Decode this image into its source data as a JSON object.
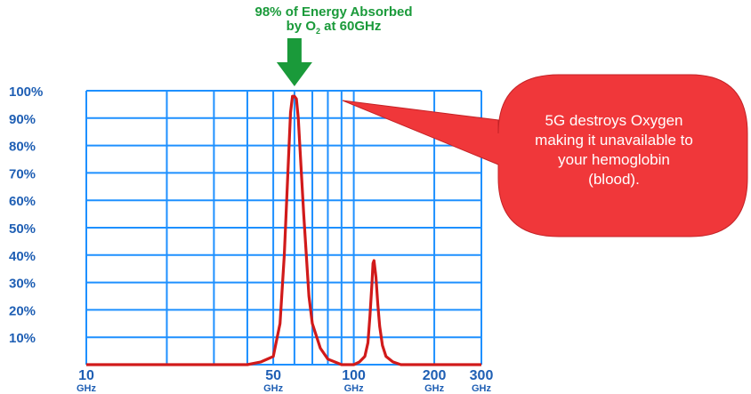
{
  "title": {
    "line1": "98% of Energy Absorbed",
    "line2_pre": "by O",
    "line2_sub": "2",
    "line2_post": " at 60GHz"
  },
  "callout": {
    "lines": [
      "5G destroys Oxygen",
      "making it unavailable to",
      "your hemoglobin",
      "(blood)."
    ]
  },
  "colors": {
    "grid": "#1e90ff",
    "curve": "#d11a1a",
    "title": "#1a9a3a",
    "arrow": "#1a9a3a",
    "ticks": "#1f5fb4",
    "callout_fill": "#f0373a"
  },
  "chart_data": {
    "type": "line",
    "xscale": "log",
    "xlim": [
      10,
      300
    ],
    "ylim": [
      0,
      100
    ],
    "grid": true,
    "yticks": [
      "100%",
      "90%",
      "80%",
      "70%",
      "60%",
      "50%",
      "40%",
      "30%",
      "20%",
      "10%"
    ],
    "xticks": [
      {
        "label": "10",
        "unit": "GHz",
        "value": 10
      },
      {
        "label": "50",
        "unit": "GHz",
        "value": 50
      },
      {
        "label": "100",
        "unit": "GHz",
        "value": 100
      },
      {
        "label": "200",
        "unit": "GHz",
        "value": 200
      },
      {
        "label": "300",
        "unit": "GHz",
        "value": 300
      }
    ],
    "series": [
      {
        "x": [
          10,
          20,
          30,
          40,
          45,
          50,
          53,
          55,
          57,
          58,
          59,
          60,
          61,
          62,
          63,
          65,
          68,
          70,
          75,
          80,
          90,
          100,
          105,
          110,
          113,
          115,
          117,
          118,
          119,
          121,
          123,
          125,
          128,
          132,
          140,
          150,
          200,
          300
        ],
        "y": [
          0,
          0,
          0,
          0,
          1,
          3,
          15,
          40,
          75,
          92,
          98,
          98,
          97,
          90,
          78,
          55,
          25,
          15,
          6,
          2,
          0,
          0,
          1,
          3,
          8,
          18,
          30,
          37,
          38,
          32,
          22,
          14,
          7,
          3,
          1,
          0,
          0,
          0
        ]
      }
    ]
  }
}
